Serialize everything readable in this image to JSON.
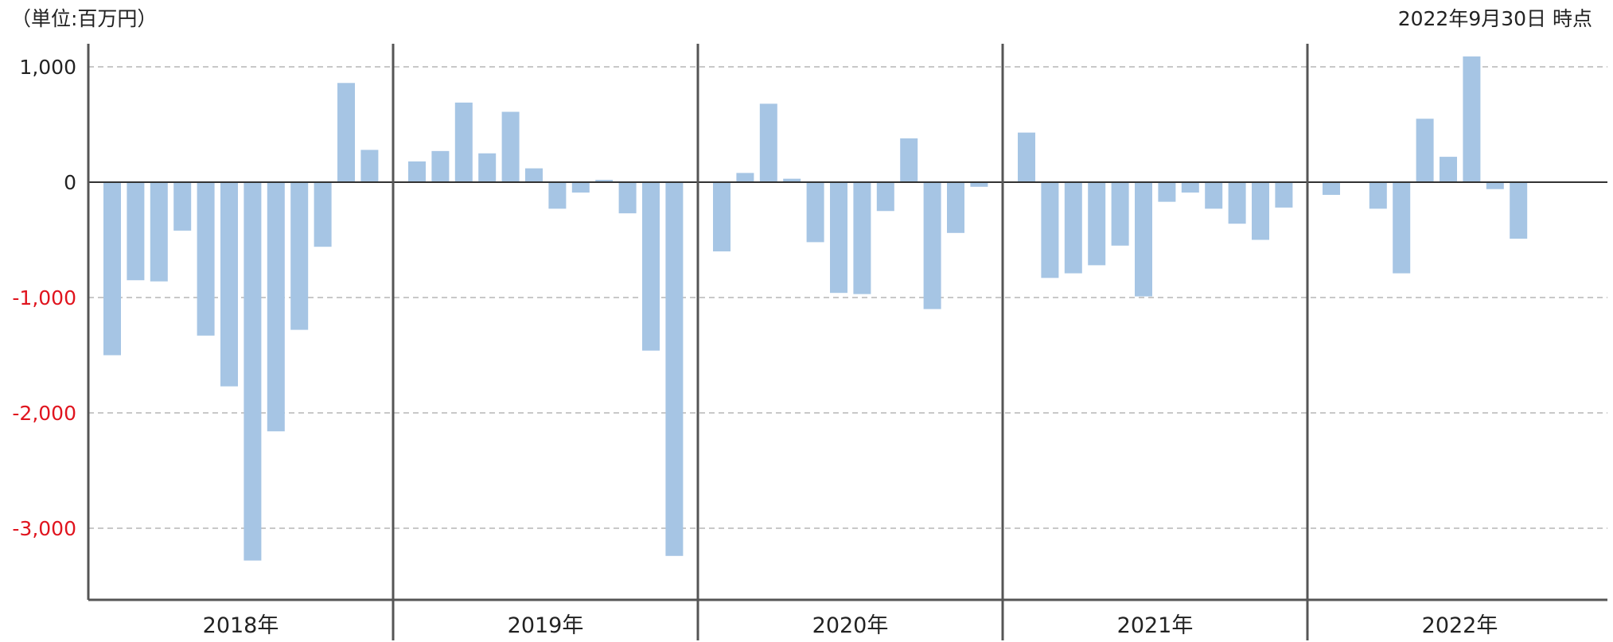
{
  "header": {
    "unit_label": "（単位:百万円）",
    "as_of": "2022年9月30日 時点"
  },
  "colors": {
    "bar": "#a6c5e4",
    "negative_tick": "#e0141e",
    "positive_tick": "#222222",
    "gridline": "#c8c8c8",
    "axis": "#555555"
  },
  "chart_data": {
    "type": "bar",
    "title": "",
    "xlabel": "",
    "ylabel": "",
    "ylim": [
      -3600,
      1200
    ],
    "yticks": [
      {
        "value": 1000,
        "label": "1,000"
      },
      {
        "value": 0,
        "label": "0"
      },
      {
        "value": -1000,
        "label": "-1,000"
      },
      {
        "value": -2000,
        "label": "-2,000"
      },
      {
        "value": -3000,
        "label": "-3,000"
      }
    ],
    "grid": true,
    "groups": [
      {
        "label": "2018年",
        "values": [
          -1500,
          -850,
          -860,
          -420,
          -1330,
          -1770,
          -3280,
          -2160,
          -1280,
          -560,
          860,
          280
        ]
      },
      {
        "label": "2019年",
        "values": [
          180,
          270,
          690,
          250,
          610,
          120,
          -230,
          -90,
          20,
          -270,
          -1460,
          -3240
        ]
      },
      {
        "label": "2020年",
        "values": [
          -600,
          80,
          680,
          30,
          -520,
          -960,
          -970,
          -250,
          380,
          -1100,
          -440,
          -40
        ]
      },
      {
        "label": "2021年",
        "values": [
          430,
          -830,
          -790,
          -720,
          -550,
          -990,
          -170,
          -90,
          -230,
          -360,
          -500,
          -220
        ]
      },
      {
        "label": "2022年",
        "values": [
          -110,
          0,
          -230,
          -790,
          550,
          220,
          1090,
          -60,
          -490
        ]
      }
    ]
  }
}
